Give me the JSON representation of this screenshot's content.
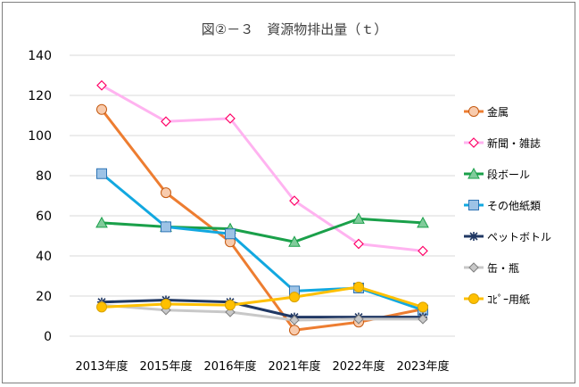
{
  "chart_data": {
    "type": "line",
    "title": "図②－３　資源物排出量（ｔ）",
    "categories": [
      "2013年度",
      "2015年度",
      "2016年度",
      "2021年度",
      "2022年度",
      "2023年度"
    ],
    "ylim": [
      0,
      140
    ],
    "yticks": [
      0,
      20,
      40,
      60,
      80,
      100,
      120,
      140
    ],
    "grid": true,
    "legend": "right",
    "series": [
      {
        "name": "金属",
        "color": "#ED7D31",
        "marker": "circle",
        "values": [
          113,
          71.5,
          47,
          3,
          7,
          13.5
        ]
      },
      {
        "name": "新聞・雑誌",
        "color": "#FFB3F0",
        "markerColor": "#FF0066",
        "marker": "diamond-open",
        "values": [
          125,
          107,
          108.5,
          67.5,
          46,
          42.5
        ]
      },
      {
        "name": "段ボール",
        "color": "#1AA04A",
        "marker": "triangle",
        "values": [
          56.5,
          54.5,
          53.5,
          47,
          58.5,
          56.5
        ]
      },
      {
        "name": "その他紙類",
        "color": "#12A8E0",
        "marker": "square",
        "values": [
          81,
          54.5,
          51,
          22.5,
          24,
          13
        ]
      },
      {
        "name": "ペットボトル",
        "color": "#203864",
        "marker": "star",
        "values": [
          17,
          18,
          17,
          9.5,
          9.5,
          9.5
        ]
      },
      {
        "name": "缶・瓶",
        "color": "#C8C8C8",
        "marker": "diamond",
        "values": [
          15.5,
          13,
          12,
          8,
          8.5,
          8.5
        ]
      },
      {
        "name": "ｺﾋﾟｰ用紙",
        "color": "#FFC000",
        "marker": "circle",
        "values": [
          14.5,
          16,
          15.5,
          19.5,
          24.5,
          14.5
        ]
      }
    ]
  }
}
